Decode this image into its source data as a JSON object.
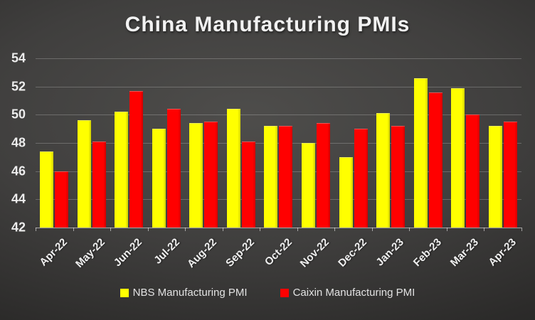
{
  "title": "China Manufacturing PMIs",
  "axes": {
    "y_ticks": [
      54,
      52,
      50,
      48,
      46,
      44,
      42
    ]
  },
  "legend": {
    "items": [
      {
        "label": "NBS Manufacturing PMI",
        "color": "#ffff00"
      },
      {
        "label": "Caixin Manufacturing PMI",
        "color": "#ff0000"
      }
    ]
  },
  "chart_data": {
    "type": "bar",
    "title": "China Manufacturing PMIs",
    "categories": [
      "Apr-22",
      "May-22",
      "Jun-22",
      "Jul-22",
      "Aug-22",
      "Sep-22",
      "Oct-22",
      "Nov-22",
      "Dec-22",
      "Jan-23",
      "Feb-23",
      "Mar-23",
      "Apr-23"
    ],
    "series": [
      {
        "name": "NBS Manufacturing PMI",
        "color": "#ffff00",
        "values": [
          47.4,
          49.6,
          50.2,
          49.0,
          49.4,
          50.4,
          49.2,
          48.0,
          47.0,
          50.1,
          52.6,
          51.9,
          49.2
        ]
      },
      {
        "name": "Caixin Manufacturing PMI",
        "color": "#ff0000",
        "values": [
          46.0,
          48.1,
          51.7,
          50.4,
          49.5,
          48.1,
          49.2,
          49.4,
          49.0,
          49.2,
          51.6,
          50.0,
          49.5
        ]
      }
    ],
    "ylim": [
      42,
      54
    ],
    "ytick_interval": 2,
    "xlabel": "",
    "ylabel": "",
    "grid": true,
    "legend_position": "bottom",
    "background": "dark-gradient"
  },
  "colors": {
    "background_center": "#4e4d4b",
    "background_edge": "#1d1d1d",
    "gridline": "rgba(255,255,255,0.22)",
    "axis_line": "rgba(255,255,255,0.55)",
    "axis_text": "#ededed",
    "legend_text": "#e2e2e2",
    "title_text": "#f2f2f2"
  }
}
